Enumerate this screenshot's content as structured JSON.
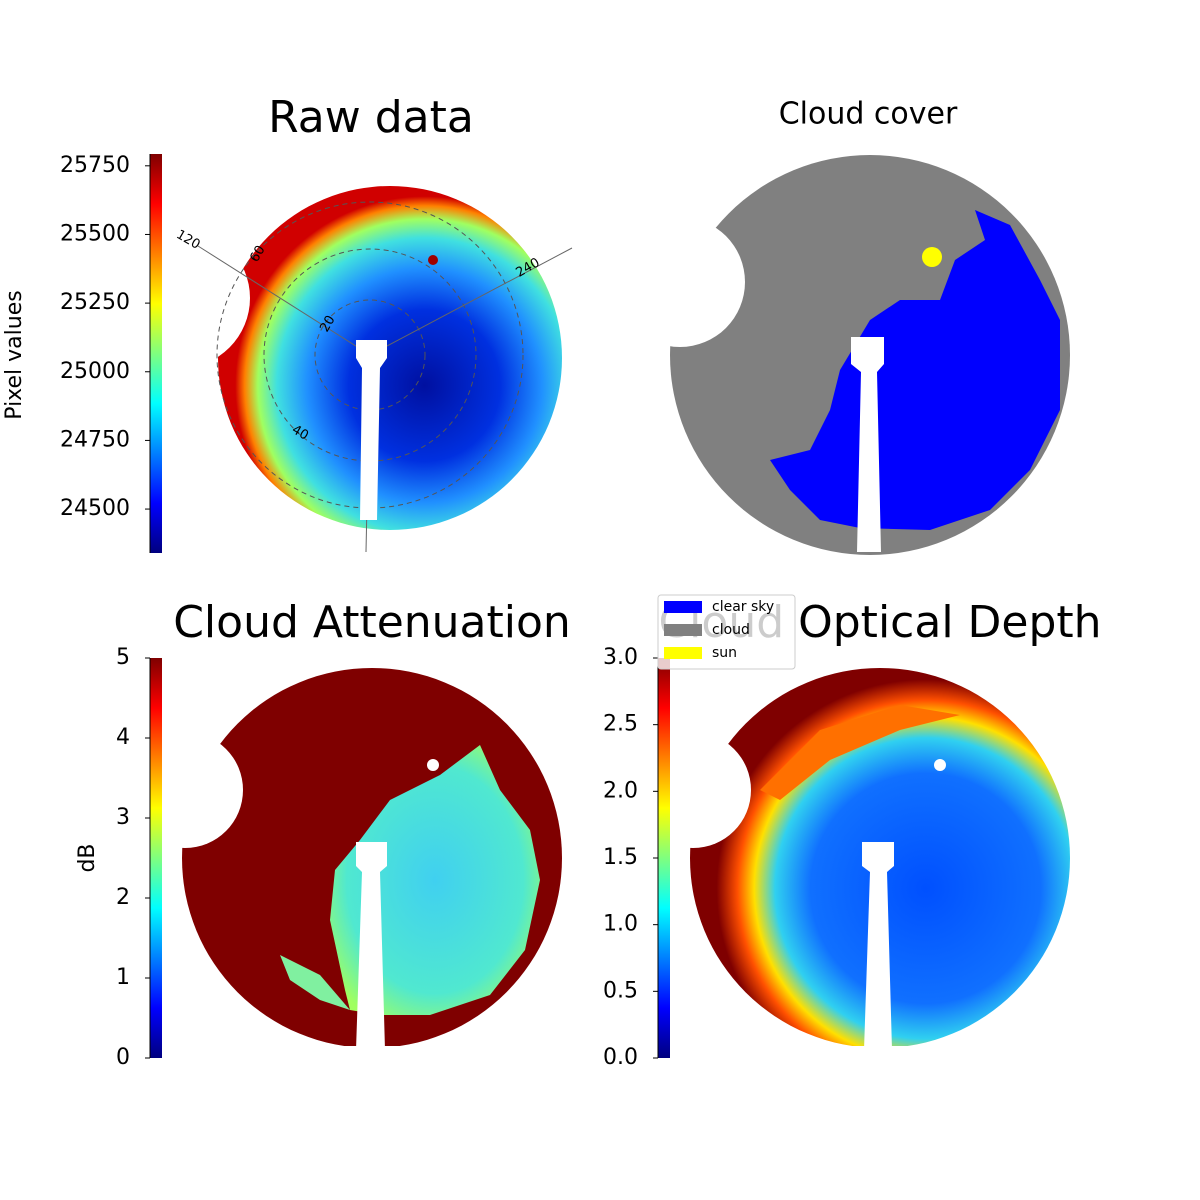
{
  "chart_data": [
    {
      "type": "image",
      "title": "Raw data",
      "colorbar_label": "Pixel values",
      "clim": [
        24340,
        25793
      ],
      "cticks": [
        24500,
        24750,
        25000,
        25250,
        25500,
        25750
      ],
      "annotations": [
        "20",
        "40",
        "60",
        "120",
        "240"
      ]
    },
    {
      "type": "image",
      "title": "Cloud cover",
      "series": [
        {
          "name": "clear sky",
          "color": "#0000ff"
        },
        {
          "name": "cloud",
          "color": "#808080"
        },
        {
          "name": "sun",
          "color": "#ffff00"
        }
      ]
    },
    {
      "type": "image",
      "title": "Cloud Attenuation",
      "colorbar_label": "dB",
      "clim": [
        0,
        5
      ],
      "cticks": [
        0,
        1,
        2,
        3,
        4,
        5
      ]
    },
    {
      "type": "image",
      "title": "Cloud Optical Depth",
      "clim": [
        0,
        3
      ],
      "cticks": [
        {
          "value": 0,
          "label": "0.0"
        },
        0.5,
        {
          "value": 1,
          "label": "1.0"
        },
        1.5,
        {
          "value": 2,
          "label": "2.0"
        },
        2.5,
        {
          "value": 3,
          "label": "3.0"
        }
      ]
    }
  ]
}
